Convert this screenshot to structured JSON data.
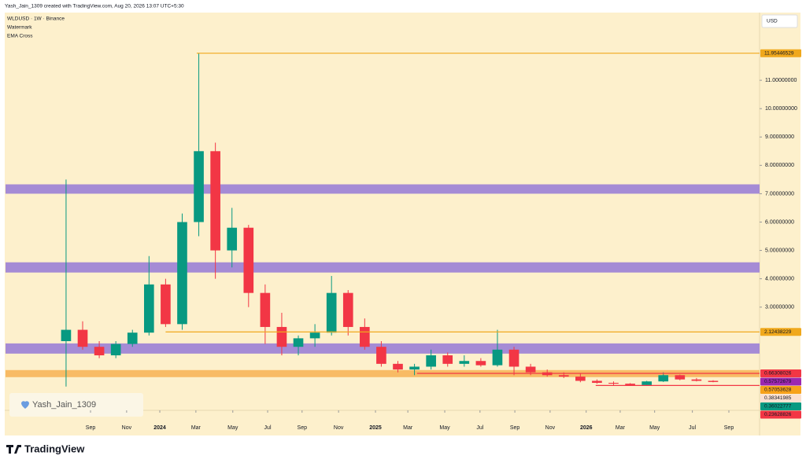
{
  "header": {
    "credit": "Yash_Jain_1309 created with TradingView.com, Aug 20, 2026 13:07 UTC+5:30",
    "lines": [
      "WLDUSD · 1W · Binance",
      "Watermark",
      "EMA Cross"
    ],
    "currency": "USD"
  },
  "watermark": "Yash_Jain_1309",
  "brand": "TradingView",
  "chart_data": {
    "type": "candlestick",
    "up_color": "#089981",
    "down_color": "#f23645",
    "x": [
      0,
      4,
      8,
      12,
      16,
      20,
      24,
      28,
      32,
      36,
      40,
      44,
      48,
      52,
      56,
      60,
      64,
      68,
      72,
      76,
      80,
      84,
      88,
      92,
      96,
      100,
      104,
      108,
      112,
      116,
      120,
      124,
      128,
      132,
      136,
      140,
      144,
      148,
      152,
      156
    ],
    "open": [
      1.8,
      2.2,
      1.6,
      1.3,
      1.7,
      2.1,
      3.8,
      2.4,
      6.0,
      8.5,
      5.0,
      5.8,
      3.5,
      2.3,
      1.6,
      1.9,
      2.1,
      3.5,
      2.3,
      1.6,
      1.0,
      0.8,
      0.9,
      1.3,
      1.0,
      1.1,
      0.95,
      1.5,
      0.9,
      0.7,
      0.6,
      0.55,
      0.4,
      0.33,
      0.3,
      0.25,
      0.38,
      0.6,
      0.45,
      0.4
    ],
    "high": [
      7.5,
      2.5,
      1.8,
      1.8,
      2.2,
      4.8,
      4.0,
      6.3,
      11.95,
      8.8,
      6.5,
      5.9,
      3.8,
      2.8,
      2.0,
      2.4,
      4.1,
      3.6,
      2.6,
      1.8,
      1.1,
      1.0,
      1.5,
      1.4,
      1.3,
      1.2,
      2.2,
      1.6,
      1.0,
      0.8,
      0.7,
      0.65,
      0.45,
      0.38,
      0.32,
      0.4,
      0.7,
      0.62,
      0.5,
      0.42
    ],
    "low": [
      0.2,
      1.5,
      1.2,
      1.2,
      1.6,
      2.0,
      2.3,
      2.2,
      5.5,
      4.0,
      4.4,
      3.0,
      1.7,
      1.3,
      1.3,
      1.6,
      2.0,
      2.0,
      1.5,
      0.9,
      0.7,
      0.6,
      0.8,
      0.9,
      0.9,
      0.9,
      0.9,
      0.6,
      0.6,
      0.55,
      0.5,
      0.35,
      0.3,
      0.25,
      0.23,
      0.24,
      0.36,
      0.42,
      0.38,
      0.35
    ],
    "close": [
      2.2,
      1.6,
      1.3,
      1.7,
      2.1,
      3.8,
      2.4,
      6.0,
      8.5,
      5.0,
      5.8,
      3.5,
      2.3,
      1.6,
      1.9,
      2.1,
      3.5,
      2.3,
      1.6,
      1.0,
      0.8,
      0.9,
      1.3,
      1.0,
      1.1,
      0.95,
      1.5,
      0.9,
      0.7,
      0.6,
      0.55,
      0.4,
      0.33,
      0.3,
      0.25,
      0.38,
      0.6,
      0.45,
      0.4,
      0.36
    ],
    "xlim": [
      -14.6,
      167.2
    ],
    "xticks": [
      {
        "value": 5.9,
        "label": "Sep"
      },
      {
        "value": 14.6,
        "label": "Nov"
      },
      {
        "value": 22.6,
        "label": "2024"
      },
      {
        "value": 31.3,
        "label": "Mar"
      },
      {
        "value": 40.2,
        "label": "May"
      },
      {
        "value": 48.6,
        "label": "Jul"
      },
      {
        "value": 56.9,
        "label": "Sep"
      },
      {
        "value": 65.7,
        "label": "Nov"
      },
      {
        "value": 74.6,
        "label": "2025"
      },
      {
        "value": 82.4,
        "label": "Mar"
      },
      {
        "value": 91.3,
        "label": "May"
      },
      {
        "value": 99.8,
        "label": "Jul"
      },
      {
        "value": 108.2,
        "label": "Sep"
      },
      {
        "value": 116.7,
        "label": "Nov"
      },
      {
        "value": 125.4,
        "label": "2026"
      },
      {
        "value": 133.6,
        "label": "Mar"
      },
      {
        "value": 141.9,
        "label": "May"
      },
      {
        "value": 151.0,
        "label": "Jul"
      },
      {
        "value": 159.8,
        "label": "Sep"
      }
    ],
    "ylim": [
      -0.64,
      13.36
    ],
    "yticks": [
      {
        "value": 3,
        "label": "3.00000000"
      },
      {
        "value": 4,
        "label": "4.00000000"
      },
      {
        "value": 5,
        "label": "5.00000000"
      },
      {
        "value": 6,
        "label": "6.00000000"
      },
      {
        "value": 7,
        "label": "7.00000000"
      },
      {
        "value": 8,
        "label": "8.00000000"
      },
      {
        "value": 9,
        "label": "9.00000000"
      },
      {
        "value": 10,
        "label": "10.00000000"
      },
      {
        "value": 11,
        "label": "11.00000000"
      }
    ],
    "zones": [
      {
        "from": 7.0,
        "to": 7.33,
        "color": "#9b7fd6"
      },
      {
        "from": 4.22,
        "to": 4.58,
        "color": "#9b7fd6"
      },
      {
        "from": 1.36,
        "to": 1.72,
        "color": "#9b7fd6"
      },
      {
        "from": 0.53,
        "to": 0.78,
        "color": "#f7b55a"
      }
    ],
    "levels": [
      {
        "value": 11.95446529,
        "label": "11.95446529",
        "color": "#f0a81c",
        "start": 31.5
      },
      {
        "value": 2.12438229,
        "label": "2.12438229",
        "color": "#f0a81c",
        "start": 24
      },
      {
        "value": 0.66308026,
        "label": "0.66308026",
        "color": "#f23645",
        "start": 84.6
      },
      {
        "value": 0.57572679,
        "label": "0.57572679",
        "color": "#9c27b0"
      },
      {
        "value": 0.57053628,
        "label": "0.57053628",
        "color": "#f7a21b"
      },
      {
        "value": 0.38341985,
        "label": "0.38341985",
        "color": "#fbe0d0"
      },
      {
        "value": 0.36022777,
        "label": "0.36022777",
        "color": "#089981"
      },
      {
        "value": 0.23628826,
        "label": "0.23628826",
        "color": "#f23645",
        "start": 127.7
      }
    ]
  }
}
